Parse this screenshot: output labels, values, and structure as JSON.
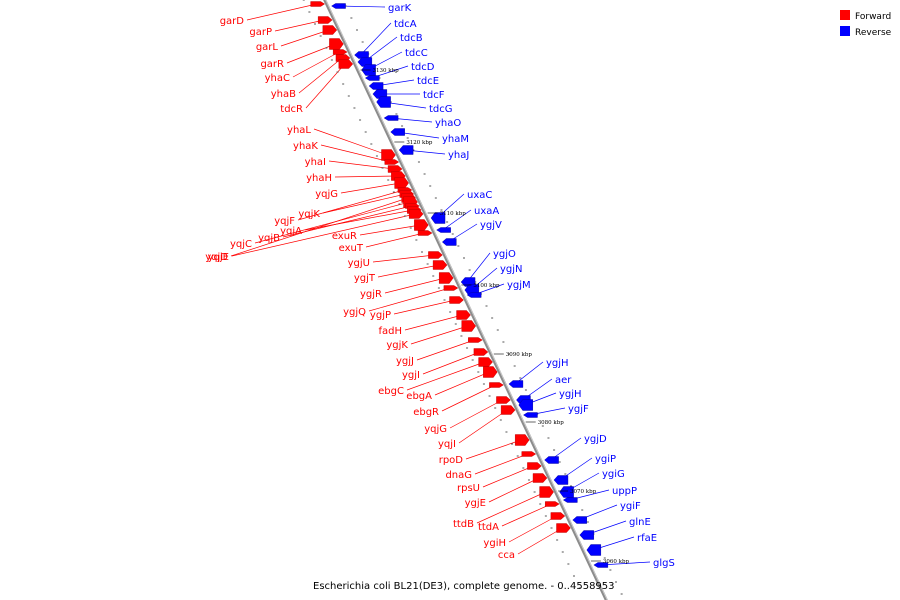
{
  "caption": "Escherichia coli BL21(DE3), complete genome. - 0..4558953",
  "legend": [
    {
      "label": "Forward",
      "color": "#ff0000"
    },
    {
      "label": "Reverse",
      "color": "#0000ff"
    }
  ],
  "colors": {
    "forward": "#ff0000",
    "reverse": "#0000ff",
    "backbone": "#888888"
  },
  "ticks": [
    "3130 kbp",
    "3120 kbp",
    "3110 kbp",
    "3100 kbp",
    "3090 kbp",
    "3080 kbp",
    "3070 kbp",
    "3060 kbp"
  ],
  "forward_genes": [
    "garD",
    "garP",
    "garL",
    "garR",
    "yhaC",
    "yhaB",
    "tdcR",
    "yhaL",
    "yhaK",
    "yhaI",
    "yhaH",
    "yqjG",
    "yqjF",
    "yqjK",
    "yqjD",
    "yqjC",
    "yqjB",
    "yqjA",
    "yqjE",
    "exuR",
    "exuT",
    "ygjU",
    "ygjT",
    "ygjR",
    "ygjQ",
    "ygjP",
    "fadH",
    "ygjK",
    "ygjJ",
    "ygjI",
    "ebgC",
    "ebgA",
    "ebgR",
    "yqjG",
    "yqjI",
    "rpoD",
    "dnaG",
    "rpsU",
    "ygjE",
    "ttdB",
    "ttdA",
    "ygiH",
    "cca"
  ],
  "reverse_genes": [
    "garK",
    "tdcA",
    "tdcB",
    "tdcC",
    "tdcD",
    "tdcE",
    "tdcF",
    "tdcG",
    "yhaO",
    "yhaM",
    "yhaJ",
    "uxaC",
    "uxaA",
    "ygjV",
    "ygjO",
    "ygjN",
    "ygjM",
    "ygjH",
    "aer",
    "ygjH",
    "ygjF",
    "ygjD",
    "ygiP",
    "ygiG",
    "uppP",
    "ygiF",
    "glnE",
    "rfaE",
    "glgS"
  ]
}
